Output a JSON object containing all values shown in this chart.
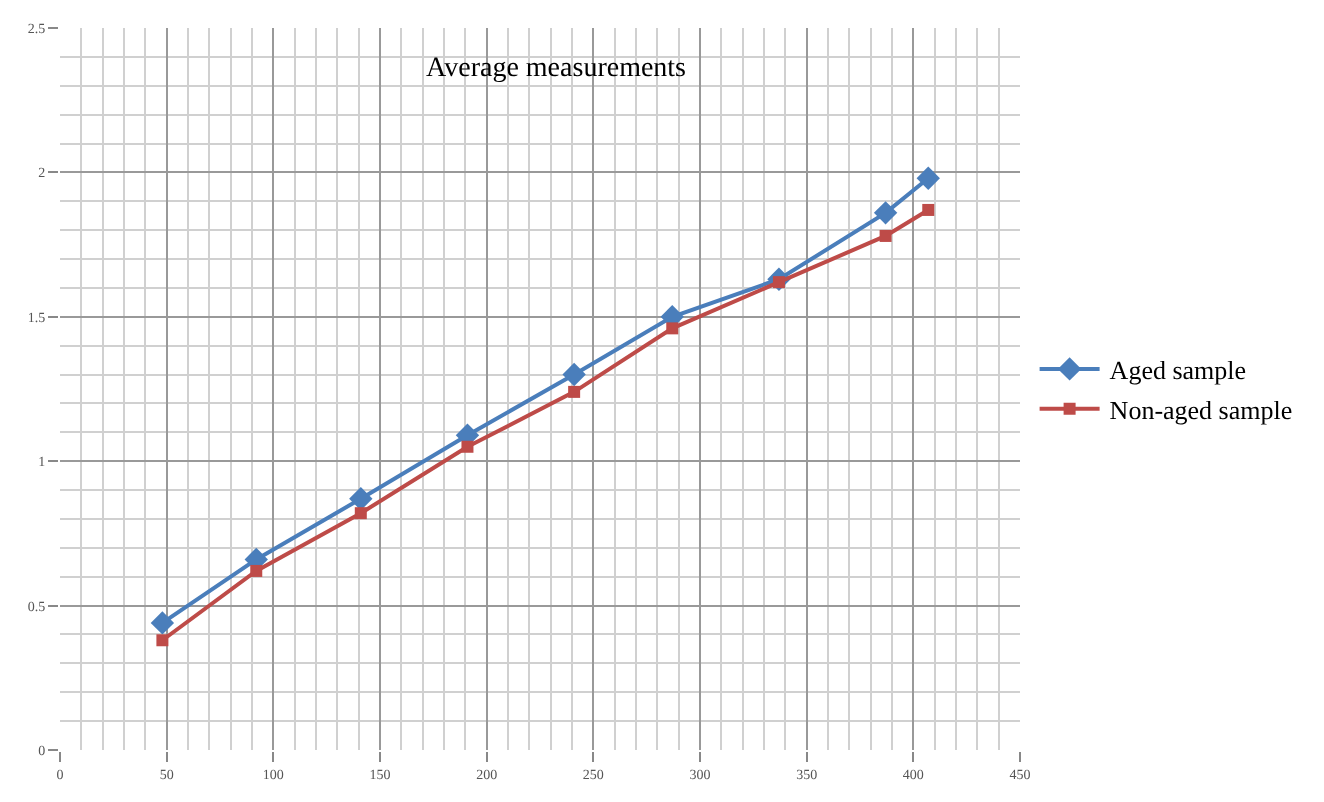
{
  "chart_data": {
    "type": "line",
    "title": "Average measurements",
    "x": [
      48,
      92,
      141,
      191,
      241,
      287,
      337,
      387,
      407
    ],
    "series": [
      {
        "name": "Aged sample",
        "color": "#4a7ebb",
        "marker": "diamond",
        "values": [
          0.44,
          0.66,
          0.87,
          1.09,
          1.3,
          1.5,
          1.63,
          1.86,
          1.98
        ]
      },
      {
        "name": "Non-aged sample",
        "color": "#be4b48",
        "marker": "square",
        "values": [
          0.38,
          0.62,
          0.82,
          1.05,
          1.24,
          1.46,
          1.62,
          1.78,
          1.87
        ]
      }
    ],
    "xlim": [
      0,
      450
    ],
    "xticks": [
      0,
      50,
      100,
      150,
      200,
      250,
      300,
      350,
      400,
      450
    ],
    "ylim": [
      0,
      2.5
    ],
    "yticks": [
      0,
      0.5,
      1,
      1.5,
      2,
      2.5
    ],
    "grid": true,
    "legend": "right",
    "line_style": "solid"
  }
}
